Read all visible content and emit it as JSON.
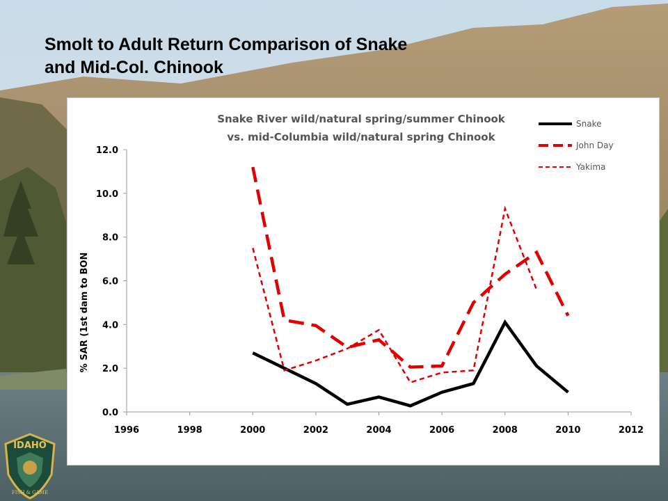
{
  "slide": {
    "title_line1": "Smolt to Adult Return Comparison of Snake",
    "title_line2": "and Mid-Col. Chinook"
  },
  "logo": {
    "text_top": "IDAHO",
    "text_bottom": "FISH & GAME",
    "icon": "idaho-fish-and-game-emblem"
  },
  "colors": {
    "snake": "#000000",
    "john_day": "#e00000",
    "yakima": "#e00000",
    "title_text": "#555555"
  },
  "chart_data": {
    "type": "line",
    "title_lines": [
      "Snake River wild/natural spring/summer Chinook",
      "vs. mid-Columbia wild/natural spring Chinook"
    ],
    "xlabel": "",
    "ylabel": "% SAR (1st dam to BON",
    "xlim": [
      1996,
      2012
    ],
    "ylim": [
      0,
      12
    ],
    "x_ticks": [
      "1996",
      "1998",
      "2000",
      "2002",
      "2004",
      "2006",
      "2008",
      "2010",
      "2012"
    ],
    "y_ticks": [
      "0.0",
      "2.0",
      "4.0",
      "6.0",
      "8.0",
      "10.0",
      "12.0"
    ],
    "grid": false,
    "legend_position": "top-right",
    "series": [
      {
        "name": "Snake",
        "style": "solid",
        "x": [
          2000,
          2001,
          2002,
          2003,
          2004,
          2005,
          2006,
          2007,
          2008,
          2009,
          2010
        ],
        "y": [
          2.7,
          2.0,
          1.3,
          0.35,
          0.68,
          0.28,
          0.9,
          1.3,
          4.1,
          2.1,
          0.9
        ]
      },
      {
        "name": "John Day",
        "style": "long-dash",
        "x": [
          2000,
          2001,
          2002,
          2003,
          2004,
          2005,
          2006,
          2007,
          2008,
          2009,
          2010
        ],
        "y": [
          11.2,
          4.2,
          3.95,
          2.95,
          3.3,
          2.05,
          2.1,
          5.0,
          6.3,
          7.3,
          4.4
        ]
      },
      {
        "name": "Yakima",
        "style": "short-dash",
        "x": [
          2000,
          2001,
          2002,
          2003,
          2004,
          2005,
          2006,
          2007,
          2008,
          2009
        ],
        "y": [
          7.5,
          1.9,
          2.35,
          2.9,
          3.75,
          1.35,
          1.8,
          1.9,
          9.3,
          5.6
        ]
      }
    ]
  }
}
